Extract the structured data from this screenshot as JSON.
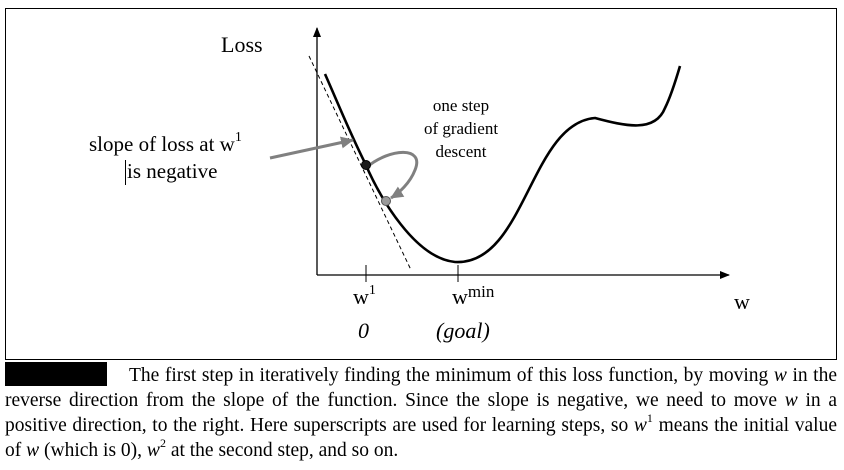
{
  "axes": {
    "y_label": "Loss",
    "x_label": "w",
    "tick_w1": {
      "base": "w",
      "sup": "1",
      "value": "0"
    },
    "tick_wmin": {
      "base": "w",
      "sup": "min",
      "value": "(goal)"
    }
  },
  "annotations": {
    "slope": [
      "slope of loss at w",
      "1",
      "is negative"
    ],
    "step": [
      "one step",
      "of gradient",
      "descent"
    ]
  },
  "caption": {
    "p1": "The first step in iteratively finding the minimum of this loss function, by moving",
    "w_italic": "w",
    "p2": " in the reverse direction from the slope of the function. Since the slope is negative, we need to move ",
    "p3": " in a positive direction, to the right. Here superscripts are used for learning steps, so ",
    "sup1": "1",
    "p4": " means the initial value of ",
    "p5": " (which is 0), ",
    "sup2": "2",
    "p6": " at the second step, and so on."
  },
  "colors": {
    "arrow": "#808080",
    "point_w1": "#1a1a1a",
    "point_w2": "#9a9a9a"
  }
}
